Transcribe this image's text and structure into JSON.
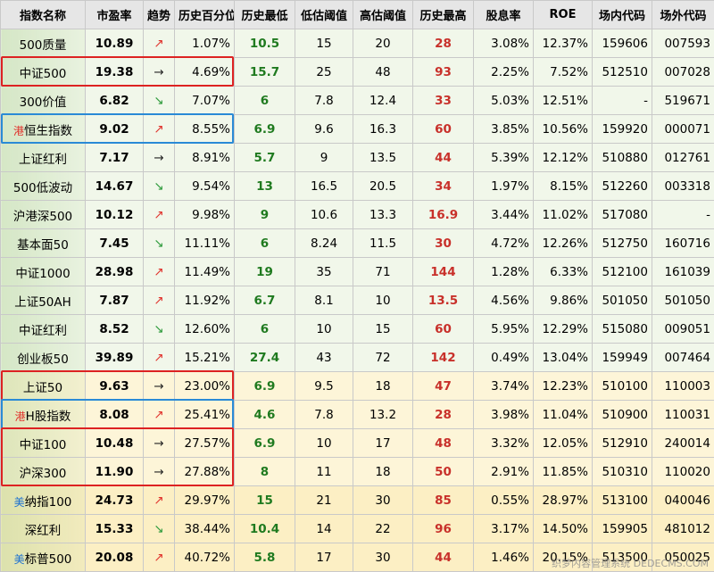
{
  "table": {
    "header": [
      "指数名称",
      "市盈率",
      "趋势",
      "历史百分位",
      "历史最低",
      "低估阈值",
      "高估阈值",
      "历史最高",
      "股息率",
      "ROE",
      "场内代码",
      "场外代码"
    ],
    "rows": [
      {
        "bg": "#f1f7ea",
        "trend_color": "#e0302a",
        "cells": [
          "500质量",
          "10.89",
          "↗",
          "1.07%",
          "10.5",
          "15",
          "20",
          "28",
          "3.08%",
          "12.37%",
          "159606",
          "007593"
        ]
      },
      {
        "bg": "#f1f7ea",
        "trend_color": "#222222",
        "cells": [
          "中证500",
          "19.38",
          "→",
          "4.69%",
          "15.7",
          "25",
          "48",
          "93",
          "2.25%",
          "7.52%",
          "512510",
          "007028"
        ]
      },
      {
        "bg": "#f1f7ea",
        "trend_color": "#2c9a3a",
        "cells": [
          "300价值",
          "6.82",
          "↘",
          "7.07%",
          "6",
          "7.8",
          "12.4",
          "33",
          "5.03%",
          "12.51%",
          "-",
          "519671"
        ]
      },
      {
        "bg": "#f1f7ea",
        "trend_color": "#e0302a",
        "tag": "港",
        "tag_color": "#e0302a",
        "cells": [
          "恒生指数",
          "9.02",
          "↗",
          "8.55%",
          "6.9",
          "9.6",
          "16.3",
          "60",
          "3.85%",
          "10.56%",
          "159920",
          "000071"
        ]
      },
      {
        "bg": "#f1f7ea",
        "trend_color": "#222222",
        "cells": [
          "上证红利",
          "7.17",
          "→",
          "8.91%",
          "5.7",
          "9",
          "13.5",
          "44",
          "5.39%",
          "12.12%",
          "510880",
          "012761"
        ]
      },
      {
        "bg": "#f1f7ea",
        "trend_color": "#2c9a3a",
        "cells": [
          "500低波动",
          "14.67",
          "↘",
          "9.54%",
          "13",
          "16.5",
          "20.5",
          "34",
          "1.97%",
          "8.15%",
          "512260",
          "003318"
        ]
      },
      {
        "bg": "#f1f7ea",
        "trend_color": "#e0302a",
        "cells": [
          "沪港深500",
          "10.12",
          "↗",
          "9.98%",
          "9",
          "10.6",
          "13.3",
          "16.9",
          "3.44%",
          "11.02%",
          "517080",
          "-"
        ]
      },
      {
        "bg": "#f1f7ea",
        "trend_color": "#2c9a3a",
        "cells": [
          "基本面50",
          "7.45",
          "↘",
          "11.11%",
          "6",
          "8.24",
          "11.5",
          "30",
          "4.72%",
          "12.26%",
          "512750",
          "160716"
        ]
      },
      {
        "bg": "#f1f7ea",
        "trend_color": "#e0302a",
        "cells": [
          "中证1000",
          "28.98",
          "↗",
          "11.49%",
          "19",
          "35",
          "71",
          "144",
          "1.28%",
          "6.33%",
          "512100",
          "161039"
        ]
      },
      {
        "bg": "#f1f7ea",
        "trend_color": "#e0302a",
        "cells": [
          "上证50AH",
          "7.87",
          "↗",
          "11.92%",
          "6.7",
          "8.1",
          "10",
          "13.5",
          "4.56%",
          "9.86%",
          "501050",
          "501050"
        ]
      },
      {
        "bg": "#f1f7ea",
        "trend_color": "#2c9a3a",
        "cells": [
          "中证红利",
          "8.52",
          "↘",
          "12.60%",
          "6",
          "10",
          "15",
          "60",
          "5.95%",
          "12.29%",
          "515080",
          "009051"
        ]
      },
      {
        "bg": "#f1f7ea",
        "trend_color": "#e0302a",
        "cells": [
          "创业板50",
          "39.89",
          "↗",
          "15.21%",
          "27.4",
          "43",
          "72",
          "142",
          "0.49%",
          "13.04%",
          "159949",
          "007464"
        ]
      },
      {
        "bg": "#fdf5d8",
        "trend_color": "#222222",
        "cells": [
          "上证50",
          "9.63",
          "→",
          "23.00%",
          "6.9",
          "9.5",
          "18",
          "47",
          "3.74%",
          "12.23%",
          "510100",
          "110003"
        ]
      },
      {
        "bg": "#fdf5d8",
        "trend_color": "#e0302a",
        "tag": "港",
        "tag_color": "#e0302a",
        "cells": [
          "H股指数",
          "8.08",
          "↗",
          "25.41%",
          "4.6",
          "7.8",
          "13.2",
          "28",
          "3.98%",
          "11.04%",
          "510900",
          "110031"
        ]
      },
      {
        "bg": "#fdf5d8",
        "trend_color": "#222222",
        "cells": [
          "中证100",
          "10.48",
          "→",
          "27.57%",
          "6.9",
          "10",
          "17",
          "48",
          "3.32%",
          "12.05%",
          "512910",
          "240014"
        ]
      },
      {
        "bg": "#fdf5d8",
        "trend_color": "#222222",
        "cells": [
          "沪深300",
          "11.90",
          "→",
          "27.88%",
          "8",
          "11",
          "18",
          "50",
          "2.91%",
          "11.85%",
          "510310",
          "110020"
        ]
      },
      {
        "bg": "#fcefc4",
        "trend_color": "#e0302a",
        "tag": "美",
        "tag_color": "#1a6fd1",
        "cells": [
          "纳指100",
          "24.73",
          "↗",
          "29.97%",
          "15",
          "21",
          "30",
          "85",
          "0.55%",
          "28.97%",
          "513100",
          "040046"
        ]
      },
      {
        "bg": "#fcefc4",
        "trend_color": "#2c9a3a",
        "cells": [
          "深红利",
          "15.33",
          "↘",
          "38.44%",
          "10.4",
          "14",
          "22",
          "96",
          "3.17%",
          "14.50%",
          "159905",
          "481012"
        ]
      },
      {
        "bg": "#fcefc4",
        "trend_color": "#e0302a",
        "tag": "美",
        "tag_color": "#1a6fd1",
        "cells": [
          "标普500",
          "20.08",
          "↗",
          "40.72%",
          "5.8",
          "17",
          "30",
          "44",
          "1.46%",
          "20.15%",
          "513500",
          "050025"
        ]
      }
    ]
  },
  "watermark": "织梦内容管理系统 DEDECMS.COM"
}
